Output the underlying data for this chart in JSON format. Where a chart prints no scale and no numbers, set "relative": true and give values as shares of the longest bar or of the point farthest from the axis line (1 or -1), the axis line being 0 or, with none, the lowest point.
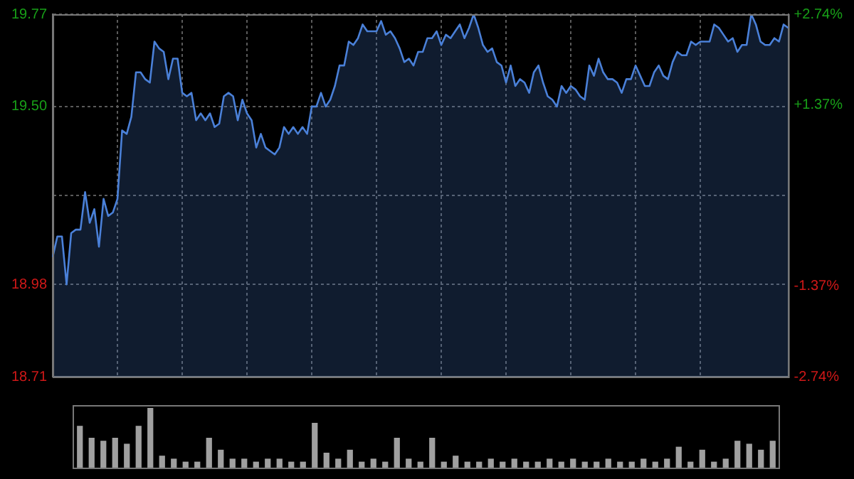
{
  "chart_data": [
    {
      "type": "area",
      "categories": [
        null,
        null,
        null,
        null,
        null,
        null,
        null,
        null,
        null,
        null,
        null,
        null,
        null,
        null,
        null,
        null,
        null,
        null,
        null,
        null,
        null,
        null,
        null,
        null,
        null,
        null,
        null,
        null,
        null,
        null,
        null,
        null,
        null,
        null,
        null,
        null,
        null,
        null,
        null,
        null,
        null,
        null,
        null,
        null,
        null,
        null,
        null,
        null,
        null,
        null,
        null,
        null,
        null,
        null,
        null,
        null,
        null,
        null,
        null,
        null,
        null,
        null,
        null,
        null,
        null,
        null,
        null,
        null,
        null,
        null,
        null,
        null,
        null,
        null,
        null,
        null,
        null,
        null,
        null,
        null,
        null,
        null,
        null,
        null,
        null,
        null,
        null,
        null,
        null,
        null,
        null,
        null,
        null,
        null,
        null,
        null,
        null,
        null,
        null,
        null,
        null,
        null,
        null,
        null,
        null,
        null,
        null,
        null,
        null,
        null,
        null,
        null,
        null,
        null,
        null,
        null,
        null,
        null,
        null,
        null,
        null,
        null,
        null,
        null,
        null,
        null,
        null,
        null,
        null,
        null,
        null,
        null,
        null,
        null,
        null,
        null,
        null,
        null,
        null,
        null,
        null,
        null,
        null,
        null,
        null,
        null,
        null,
        null,
        null,
        null,
        null,
        null,
        null,
        null,
        null,
        null,
        null,
        null,
        null,
        null
      ],
      "series": [
        {
          "color": "#4a80d8",
          "values": [
            19.06,
            19.12,
            19.12,
            18.98,
            19.13,
            19.14,
            19.14,
            19.25,
            19.16,
            19.2,
            19.09,
            19.23,
            19.18,
            19.19,
            19.23,
            19.43,
            19.42,
            19.47,
            19.6,
            19.6,
            19.58,
            19.57,
            19.69,
            19.67,
            19.66,
            19.58,
            19.64,
            19.64,
            19.54,
            19.53,
            19.54,
            19.46,
            19.48,
            19.46,
            19.48,
            19.44,
            19.45,
            19.53,
            19.54,
            19.53,
            19.46,
            19.52,
            19.48,
            19.46,
            19.38,
            19.42,
            19.38,
            19.37,
            19.36,
            19.38,
            19.44,
            19.42,
            19.44,
            19.42,
            19.44,
            19.42,
            19.5,
            19.5,
            19.54,
            19.5,
            19.52,
            19.56,
            19.62,
            19.62,
            19.69,
            19.68,
            19.7,
            19.74,
            19.72,
            19.72,
            19.72,
            19.75,
            19.71,
            19.72,
            19.7,
            19.67,
            19.63,
            19.64,
            19.62,
            19.66,
            19.66,
            19.7,
            19.7,
            19.72,
            19.68,
            19.71,
            19.7,
            19.72,
            19.74,
            19.7,
            19.73,
            19.77,
            19.73,
            19.68,
            19.66,
            19.67,
            19.63,
            19.62,
            19.57,
            19.62,
            19.56,
            19.58,
            19.57,
            19.54,
            19.6,
            19.62,
            19.57,
            19.53,
            19.52,
            19.5,
            19.56,
            19.54,
            19.56,
            19.55,
            19.53,
            19.52,
            19.62,
            19.59,
            19.64,
            19.6,
            19.58,
            19.58,
            19.57,
            19.54,
            19.58,
            19.58,
            19.62,
            19.59,
            19.56,
            19.56,
            19.6,
            19.62,
            19.59,
            19.58,
            19.63,
            19.66,
            19.65,
            19.65,
            19.69,
            19.68,
            19.69,
            19.69,
            19.69,
            19.74,
            19.73,
            19.71,
            19.69,
            19.7,
            19.66,
            19.68,
            19.68,
            19.77,
            19.74,
            19.69,
            19.68,
            19.68,
            19.7,
            19.69,
            19.74,
            19.73
          ]
        }
      ],
      "ylim": [
        18.71,
        19.77
      ],
      "yticks": [
        18.71,
        18.98,
        {
          "value": 19.24,
          "label": null
        },
        {
          "value": 19.5,
          "label": "19.50"
        },
        19.77
      ],
      "y2lim": [
        -2.74,
        2.74
      ],
      "y2ticks": [
        {
          "value": -2.74,
          "label": "-2.74%"
        },
        {
          "value": -1.37,
          "label": "-1.37%"
        },
        {
          "value": 1.37,
          "label": "+1.37%"
        },
        {
          "value": 2.74,
          "label": "+2.74%"
        }
      ],
      "grid": true,
      "tick_labels": "y"
    },
    {
      "type": "bar",
      "relative": true,
      "categories": [
        null,
        null,
        null,
        null,
        null,
        null,
        null,
        null,
        null,
        null,
        null,
        null,
        null,
        null,
        null,
        null,
        null,
        null,
        null,
        null,
        null,
        null,
        null,
        null,
        null,
        null,
        null,
        null,
        null,
        null,
        null,
        null,
        null,
        null,
        null,
        null,
        null,
        null,
        null,
        null,
        null,
        null,
        null,
        null,
        null,
        null,
        null,
        null,
        null,
        null,
        null,
        null,
        null,
        null,
        null,
        null,
        null,
        null,
        null,
        null
      ],
      "values": [
        0.7,
        0.5,
        0.45,
        0.5,
        0.4,
        0.7,
        1,
        0.2,
        0.15,
        0.1,
        0.1,
        0.5,
        0.3,
        0.15,
        0.15,
        0.1,
        0.15,
        0.15,
        0.1,
        0.1,
        0.75,
        0.25,
        0.15,
        0.3,
        0.1,
        0.15,
        0.1,
        0.5,
        0.15,
        0.1,
        0.5,
        0.1,
        0.2,
        0.1,
        0.1,
        0.15,
        0.1,
        0.15,
        0.1,
        0.1,
        0.15,
        0.1,
        0.15,
        0.1,
        0.1,
        0.15,
        0.1,
        0.1,
        0.15,
        0.1,
        0.15,
        0.35,
        0.1,
        0.3,
        0.1,
        0.15,
        0.45,
        0.4,
        0.3,
        0.45
      ],
      "color": "#a0a0a0",
      "tick_labels": false
    }
  ]
}
